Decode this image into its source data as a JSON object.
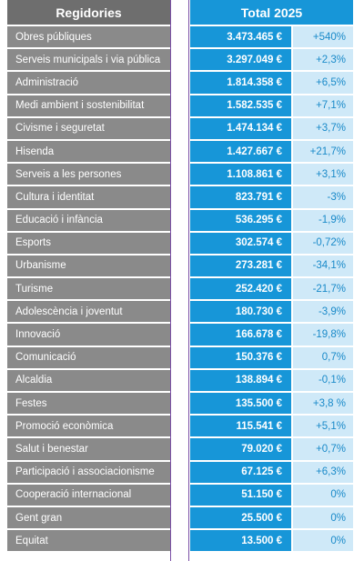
{
  "header": {
    "name_label": "Regidories",
    "total_label": "Total 2025"
  },
  "rows": [
    {
      "name": "Obres públiques",
      "value": "3.473.465 €",
      "change": "+540%"
    },
    {
      "name": "Serveis municipals i via pública",
      "value": "3.297.049 €",
      "change": "+2,3%"
    },
    {
      "name": "Administració",
      "value": "1.814.358 €",
      "change": "+6,5%"
    },
    {
      "name": "Medi ambient i sostenibilitat",
      "value": "1.582.535 €",
      "change": "+7,1%"
    },
    {
      "name": "Civisme i seguretat",
      "value": "1.474.134 €",
      "change": "+3,7%"
    },
    {
      "name": "Hisenda",
      "value": "1.427.667 €",
      "change": "+21,7%"
    },
    {
      "name": "Serveis a les persones",
      "value": "1.108.861 €",
      "change": "+3,1%"
    },
    {
      "name": "Cultura i identitat",
      "value": "823.791 €",
      "change": "-3%"
    },
    {
      "name": "Educació i infància",
      "value": "536.295 €",
      "change": "-1,9%"
    },
    {
      "name": "Esports",
      "value": "302.574 €",
      "change": "-0,72%"
    },
    {
      "name": "Urbanisme",
      "value": "273.281 €",
      "change": "-34,1%"
    },
    {
      "name": "Turisme",
      "value": "252.420 €",
      "change": "-21,7%"
    },
    {
      "name": "Adolescència i joventut",
      "value": "180.730 €",
      "change": "-3,9%"
    },
    {
      "name": "Innovació",
      "value": "166.678 €",
      "change": "-19,8%"
    },
    {
      "name": "Comunicació",
      "value": "150.376 €",
      "change": "0,7%"
    },
    {
      "name": "Alcaldia",
      "value": "138.894 €",
      "change": "-0,1%"
    },
    {
      "name": "Festes",
      "value": "135.500 €",
      "change": "+3,8 %"
    },
    {
      "name": "Promoció econòmica",
      "value": "115.541 €",
      "change": "+5,1%"
    },
    {
      "name": "Salut i benestar",
      "value": "79.020 €",
      "change": "+0,7%"
    },
    {
      "name": "Participació i associacionisme",
      "value": "67.125 €",
      "change": "+6,3%"
    },
    {
      "name": "Cooperació internacional",
      "value": "51.150 €",
      "change": "0%"
    },
    {
      "name": "Gent gran",
      "value": "25.500 €",
      "change": "0%"
    },
    {
      "name": "Equitat",
      "value": "13.500 €",
      "change": "0%"
    }
  ]
}
